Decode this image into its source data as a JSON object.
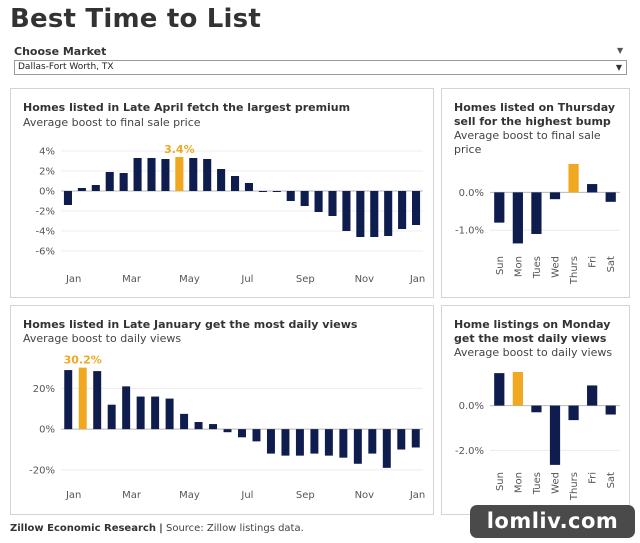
{
  "title": "Best Time to List",
  "market": {
    "label": "Choose Market",
    "selected": "Dallas-Fort Worth, TX"
  },
  "footer": {
    "org": "Zillow Economic Research",
    "separator": "|",
    "source": "Source: Zillow listings data."
  },
  "watermark": "lomliv.com",
  "colors": {
    "bar": "#0e1d4d",
    "highlight": "#f0a820",
    "grid": "#ececec",
    "zero_line": "#b8b8b8"
  },
  "chart_data": [
    {
      "id": "premium-by-week",
      "type": "bar",
      "title": "Homes listed in Late April fetch the largest premium",
      "subtitle": "Average boost to final sale price",
      "value_format": "percent",
      "ylim": [
        -7,
        5
      ],
      "yticks": [
        4,
        2,
        0,
        -2,
        -4,
        -6
      ],
      "ytick_labels": [
        "4%",
        "2%",
        "0%",
        "-2%",
        "-4%",
        "-6%"
      ],
      "xtick_labels": [
        "Jan",
        "Mar",
        "May",
        "Jul",
        "Sep",
        "Nov",
        "Jan"
      ],
      "highlight_index": 8,
      "highlight_label": "3.4%",
      "values": [
        -1.4,
        0.3,
        0.6,
        1.9,
        1.8,
        3.3,
        3.3,
        3.2,
        3.4,
        3.3,
        3.2,
        2.2,
        1.5,
        0.8,
        0,
        -0.1,
        -1.0,
        -1.5,
        -2.1,
        -2.5,
        -4.0,
        -4.6,
        -4.6,
        -4.5,
        -3.8,
        -3.4
      ]
    },
    {
      "id": "premium-by-weekday",
      "type": "bar",
      "title": "Homes listed on Thursday sell for the highest bump",
      "subtitle": "Average boost to final sale price",
      "value_format": "percent",
      "ylim": [
        -1.55,
        0.75
      ],
      "yticks": [
        0,
        -1
      ],
      "ytick_labels": [
        "0.0%",
        "-1.0%"
      ],
      "categories": [
        "Sun",
        "Mon",
        "Tues",
        "Wed",
        "Thurs",
        "Fri",
        "Sat"
      ],
      "highlight_index": 4,
      "values": [
        -0.8,
        -1.35,
        -1.1,
        -0.18,
        0.75,
        0.22,
        -0.25
      ]
    },
    {
      "id": "views-by-week",
      "type": "bar",
      "title": "Homes listed in Late January get the most daily views",
      "subtitle": "Average boost to daily views",
      "value_format": "percent",
      "ylim": [
        -23,
        31
      ],
      "yticks": [
        20,
        0,
        -20
      ],
      "ytick_labels": [
        "20%",
        "0%",
        "-20%"
      ],
      "xtick_labels": [
        "Jan",
        "Mar",
        "May",
        "Jul",
        "Sep",
        "Nov",
        "Jan"
      ],
      "highlight_index": 1,
      "highlight_label": "30.2%",
      "values": [
        29,
        30.2,
        28.5,
        12,
        21,
        16,
        16,
        15,
        7.5,
        3.5,
        2.5,
        -1.5,
        -4,
        -6,
        -12,
        -13,
        -13,
        -12,
        -13,
        -14,
        -17,
        -12,
        -19,
        -10,
        -9
      ]
    },
    {
      "id": "views-by-weekday",
      "type": "bar",
      "title": "Home listings on Monday get the most daily views",
      "subtitle": "Average boost to daily views",
      "value_format": "percent",
      "ylim": [
        -2.7,
        1.5
      ],
      "yticks": [
        0,
        -2
      ],
      "ytick_labels": [
        "0.0%",
        "-2.0%"
      ],
      "categories": [
        "Sun",
        "Mon",
        "Tues",
        "Wed",
        "Thurs",
        "Fri",
        "Sat"
      ],
      "highlight_index": 1,
      "values": [
        1.45,
        1.5,
        -0.3,
        -2.65,
        -0.65,
        0.9,
        -0.4
      ]
    }
  ],
  "panels": {
    "p1": {
      "title_lines": [
        "Homes listed in Late April fetch the largest premium"
      ]
    },
    "p2": {
      "title_lines": [
        "Homes listed on Thursday",
        "sell for the highest bump"
      ],
      "sub_lines": [
        "Average boost to final sale",
        "price"
      ]
    },
    "p3": {
      "title_lines": [
        "Homes listed in Late January get the most daily views"
      ]
    },
    "p4": {
      "title_lines": [
        "Home listings on Monday",
        "get the most daily views"
      ]
    }
  }
}
